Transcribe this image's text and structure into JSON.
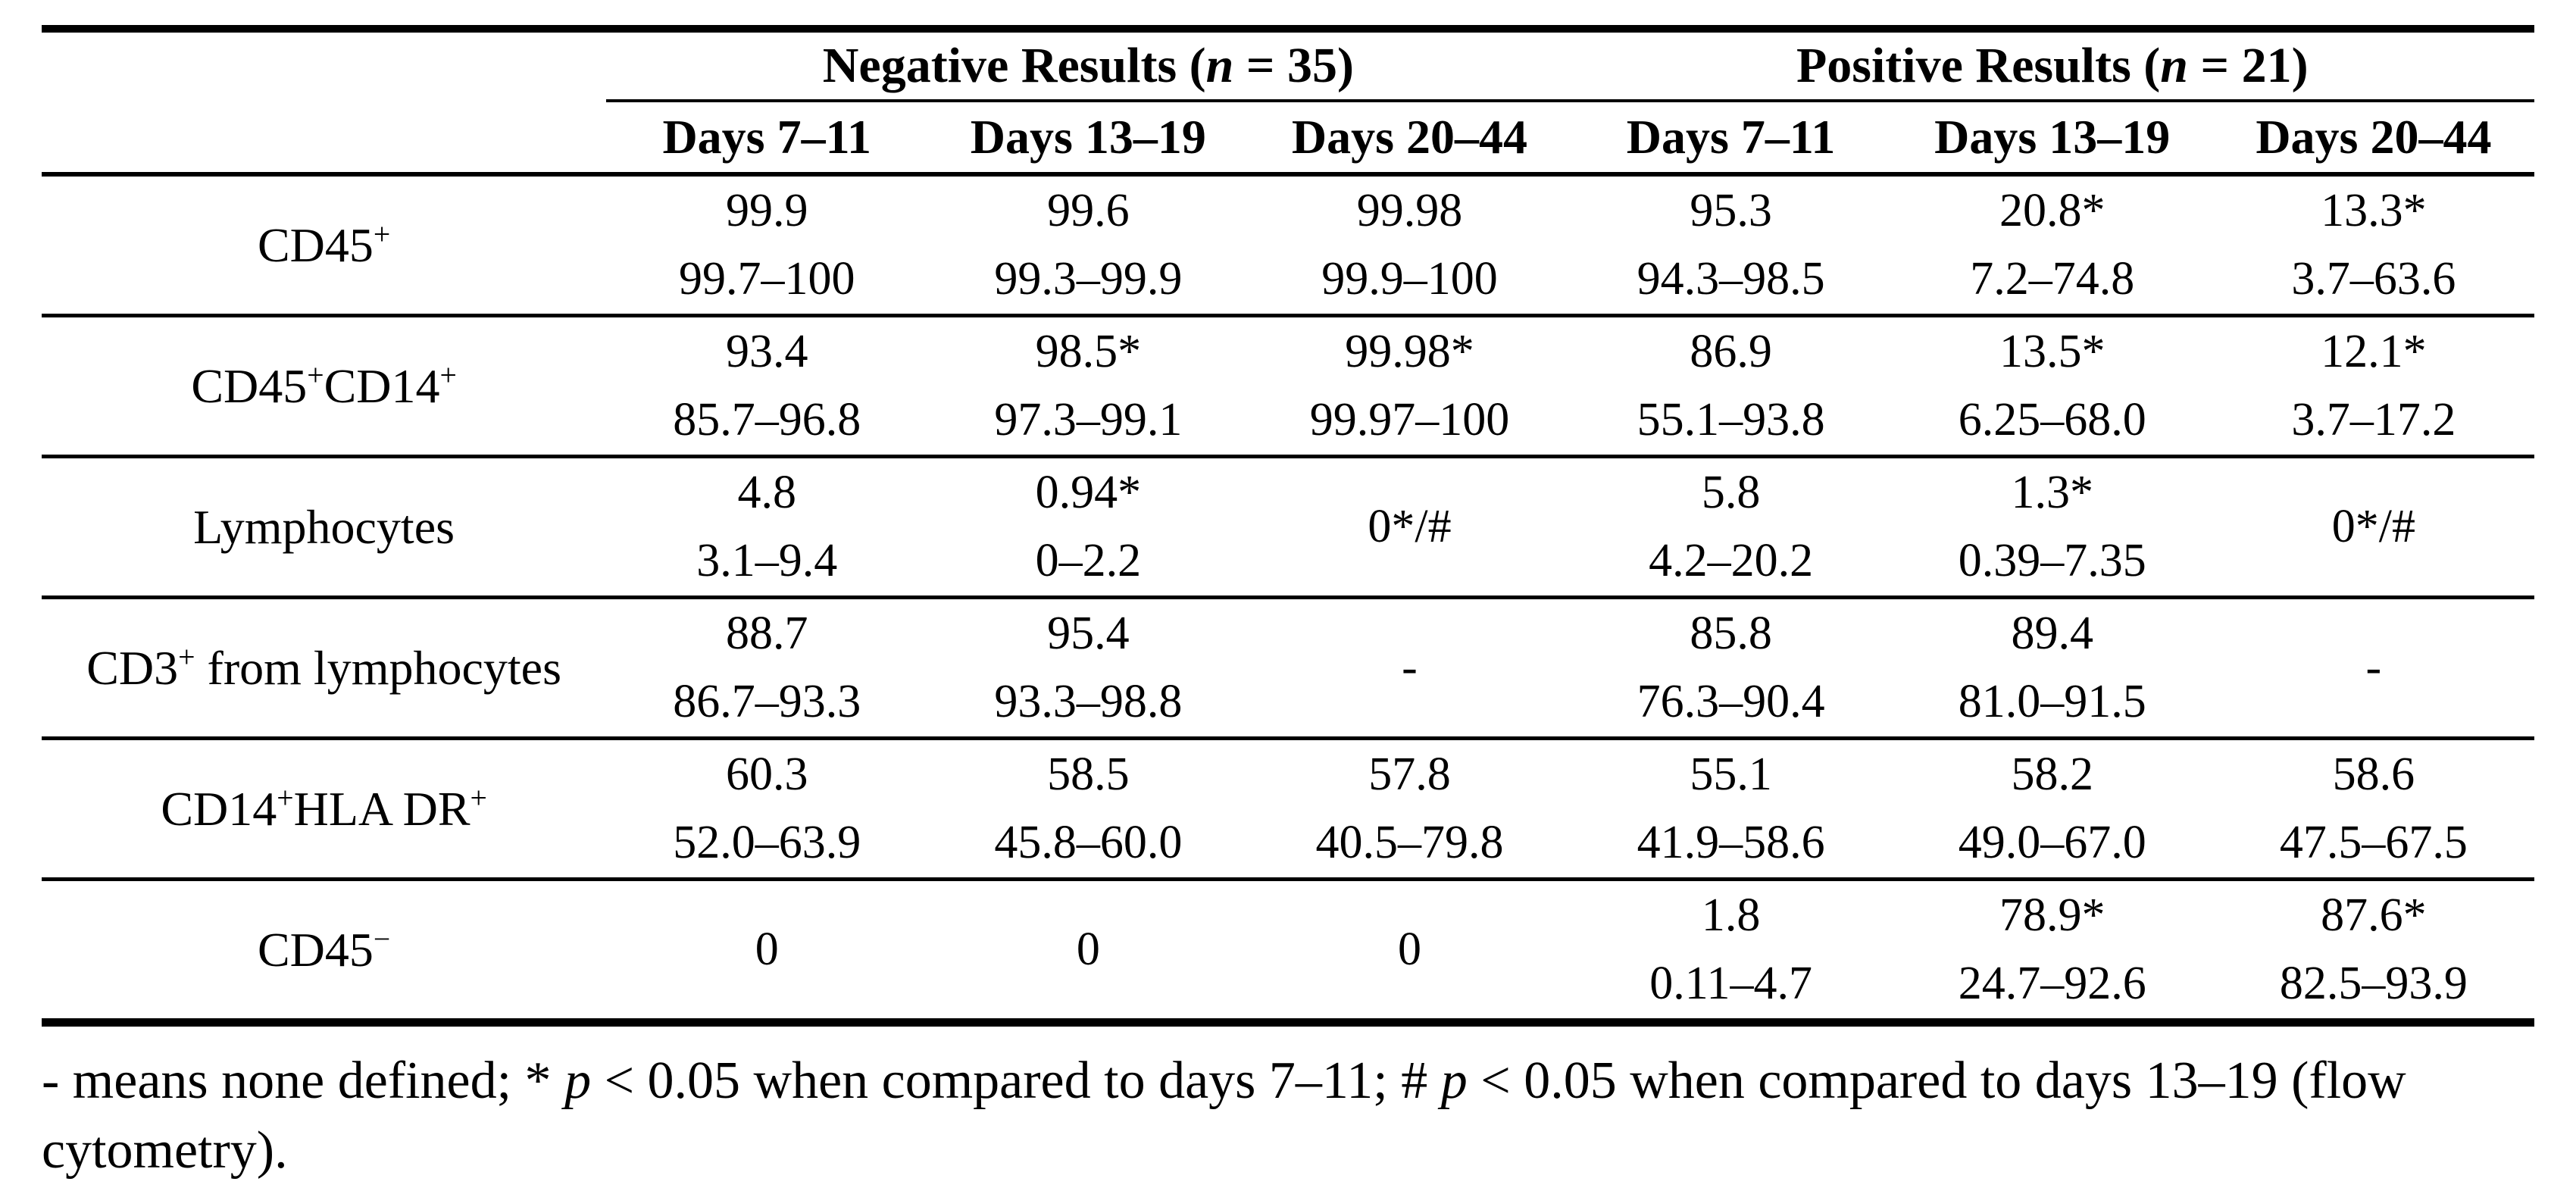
{
  "table": {
    "groups": [
      {
        "title_parts": [
          "Negative Results (",
          "n",
          " = 35)"
        ]
      },
      {
        "title_parts": [
          "Positive Results (",
          "n",
          " = 21)"
        ]
      }
    ],
    "day_columns": [
      "Days 7–11",
      "Days 13–19",
      "Days 20–44",
      "Days 7–11",
      "Days 13–19",
      "Days 20–44"
    ],
    "rows": [
      {
        "label_parts": [
          [
            "CD45",
            false
          ],
          [
            "+",
            true
          ]
        ],
        "cells": [
          {
            "median": "99.9",
            "range": "99.7–100"
          },
          {
            "median": "99.6",
            "range": "99.3–99.9"
          },
          {
            "median": "99.98",
            "range": "99.9–100"
          },
          {
            "median": "95.3",
            "range": "94.3–98.5"
          },
          {
            "median": "20.8*",
            "range": "7.2–74.8"
          },
          {
            "median": "13.3*",
            "range": "3.7–63.6"
          }
        ]
      },
      {
        "label_parts": [
          [
            "CD45",
            false
          ],
          [
            "+",
            true
          ],
          [
            "CD14",
            false
          ],
          [
            "+",
            true
          ]
        ],
        "cells": [
          {
            "median": "93.4",
            "range": "85.7–96.8"
          },
          {
            "median": "98.5*",
            "range": "97.3–99.1"
          },
          {
            "median": "99.98*",
            "range": "99.97–100"
          },
          {
            "median": "86.9",
            "range": "55.1–93.8"
          },
          {
            "median": "13.5*",
            "range": "6.25–68.0"
          },
          {
            "median": "12.1*",
            "range": "3.7–17.2"
          }
        ]
      },
      {
        "label_parts": [
          [
            "Lymphocytes",
            false
          ]
        ],
        "cells": [
          {
            "median": "4.8",
            "range": "3.1–9.4"
          },
          {
            "median": "0.94*",
            "range": "0–2.2"
          },
          {
            "single": "0*/#"
          },
          {
            "median": "5.8",
            "range": "4.2–20.2"
          },
          {
            "median": "1.3*",
            "range": "0.39–7.35"
          },
          {
            "single": "0*/#"
          }
        ]
      },
      {
        "label_parts": [
          [
            "CD3",
            false
          ],
          [
            "+",
            true
          ],
          [
            " from lymphocytes",
            false
          ]
        ],
        "cells": [
          {
            "median": "88.7",
            "range": "86.7–93.3"
          },
          {
            "median": "95.4",
            "range": "93.3–98.8"
          },
          {
            "single": "-"
          },
          {
            "median": "85.8",
            "range": "76.3–90.4"
          },
          {
            "median": "89.4",
            "range": "81.0–91.5"
          },
          {
            "single": "-"
          }
        ]
      },
      {
        "label_parts": [
          [
            "CD14",
            false
          ],
          [
            "+",
            true
          ],
          [
            "HLA DR",
            false
          ],
          [
            "+",
            true
          ]
        ],
        "cells": [
          {
            "median": "60.3",
            "range": "52.0–63.9"
          },
          {
            "median": "58.5",
            "range": "45.8–60.0"
          },
          {
            "median": "57.8",
            "range": "40.5–79.8"
          },
          {
            "median": "55.1",
            "range": "41.9–58.6"
          },
          {
            "median": "58.2",
            "range": "49.0–67.0"
          },
          {
            "median": "58.6",
            "range": "47.5–67.5"
          }
        ]
      },
      {
        "label_parts": [
          [
            "CD45",
            false
          ],
          [
            "−",
            true
          ]
        ],
        "cells": [
          {
            "single": "0"
          },
          {
            "single": "0"
          },
          {
            "single": "0"
          },
          {
            "median": "1.8",
            "range": "0.11–4.7"
          },
          {
            "median": "78.9*",
            "range": "24.7–92.6"
          },
          {
            "median": "87.6*",
            "range": "82.5–93.9"
          }
        ]
      }
    ],
    "footnote_parts": [
      "- means none defined; * ",
      "p",
      " < 0.05 when compared to days 7–11; # ",
      "p",
      " < 0.05 when compared to days 13–19 (flow cytometry)."
    ]
  }
}
